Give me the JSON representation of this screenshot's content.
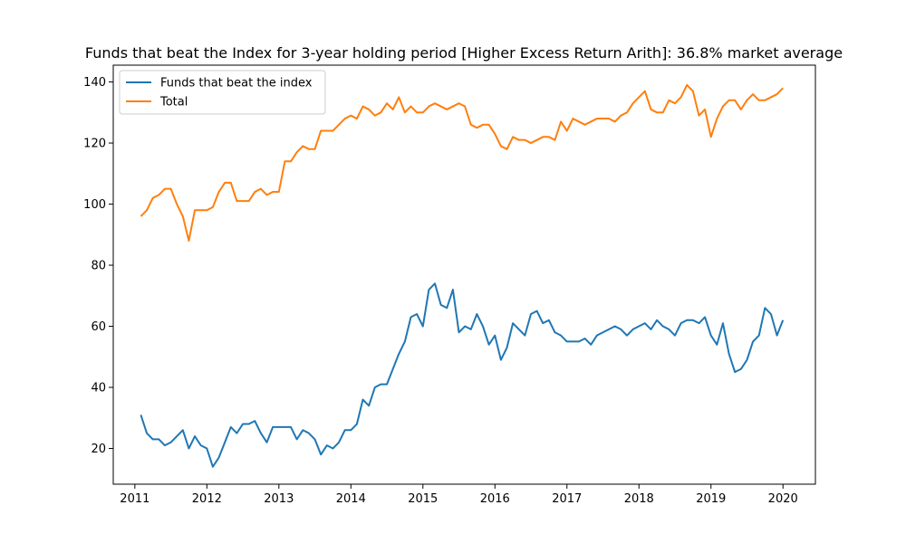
{
  "chart_data": {
    "type": "line",
    "title": "Funds that beat the Index for 3-year holding period [Higher Excess Return Arith]: 36.8% market average",
    "xlabel": "",
    "ylabel": "",
    "x_tick_labels": [
      "2011",
      "2012",
      "2013",
      "2014",
      "2015",
      "2016",
      "2017",
      "2018",
      "2019",
      "2020"
    ],
    "y_ticks": [
      20,
      40,
      60,
      80,
      100,
      120,
      140
    ],
    "xlim": [
      2010.7,
      2020.45
    ],
    "ylim": [
      8.3,
      145.5
    ],
    "grid": false,
    "legend_position": "top-left",
    "x_start": 2011.083,
    "x_step_months": 1,
    "series": [
      {
        "name": "Funds that beat the index",
        "color": "#1f77b4",
        "values": [
          31,
          25,
          23,
          23,
          21,
          22,
          24,
          26,
          20,
          24,
          21,
          20,
          14,
          17,
          22,
          27,
          25,
          28,
          28,
          29,
          25,
          22,
          27,
          27,
          27,
          27,
          23,
          26,
          25,
          23,
          18,
          21,
          20,
          22,
          26,
          26,
          28,
          36,
          34,
          40,
          41,
          41,
          46,
          51,
          55,
          63,
          64,
          60,
          72,
          74,
          67,
          66,
          72,
          58,
          60,
          59,
          64,
          60,
          54,
          57,
          49,
          53,
          61,
          59,
          57,
          64,
          65,
          61,
          62,
          58,
          57,
          55,
          55,
          55,
          56,
          54,
          57,
          58,
          59,
          60,
          59,
          57,
          59,
          60,
          61,
          59,
          62,
          60,
          59,
          57,
          61,
          62,
          62,
          61,
          63,
          57,
          54,
          61,
          51,
          45,
          46,
          49,
          55,
          57,
          66,
          64,
          57,
          62
        ]
      },
      {
        "name": "Total",
        "color": "#ff7f0e",
        "values": [
          96,
          98,
          102,
          103,
          105,
          105,
          100,
          96,
          88,
          98,
          98,
          98,
          99,
          104,
          107,
          107,
          101,
          101,
          101,
          104,
          105,
          103,
          104,
          104,
          114,
          114,
          117,
          119,
          118,
          118,
          124,
          124,
          124,
          126,
          128,
          129,
          128,
          132,
          131,
          129,
          130,
          133,
          131,
          135,
          130,
          132,
          130,
          130,
          132,
          133,
          132,
          131,
          132,
          133,
          132,
          126,
          125,
          126,
          126,
          123,
          119,
          118,
          122,
          121,
          121,
          120,
          121,
          122,
          122,
          121,
          127,
          124,
          128,
          127,
          126,
          127,
          128,
          128,
          128,
          127,
          129,
          130,
          133,
          135,
          137,
          131,
          130,
          130,
          134,
          133,
          135,
          139,
          137,
          129,
          131,
          122,
          128,
          132,
          134,
          134,
          131,
          134,
          136,
          134,
          134,
          135,
          136,
          138
        ]
      }
    ]
  }
}
